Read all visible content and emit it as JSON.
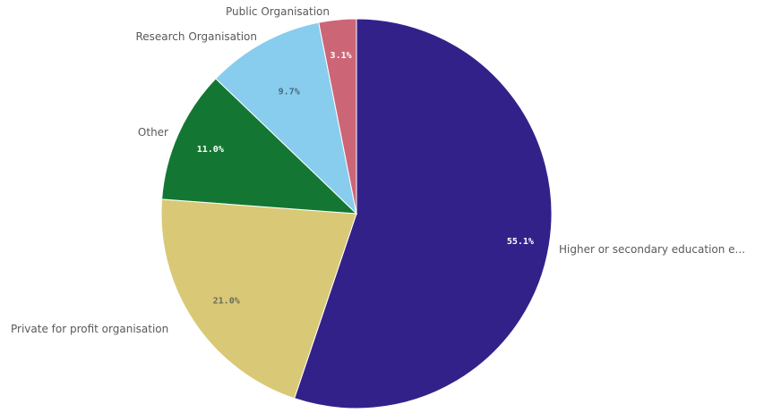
{
  "chart_data": {
    "type": "pie",
    "slices": [
      {
        "label": "Higher or secondary education e...",
        "value": 55.1,
        "value_label": "55.1%",
        "color": "#33218a",
        "value_label_color": "#ffffff"
      },
      {
        "label": "Private for profit organisation",
        "value": 21.0,
        "value_label": "21.0%",
        "color": "#d9c875",
        "value_label_color": "#6b6b5a"
      },
      {
        "label": "Other",
        "value": 11.0,
        "value_label": "11.0%",
        "color": "#137733",
        "value_label_color": "#ffffff"
      },
      {
        "label": "Research Organisation",
        "value": 9.7,
        "value_label": "9.7%",
        "color": "#88ccee",
        "value_label_color": "#4a6a7a"
      },
      {
        "label": "Public Organisation",
        "value": 3.1,
        "value_label": "3.1%",
        "color": "#cc6677",
        "value_label_color": "#ffffff"
      }
    ],
    "start_angle": "12 o'clock",
    "direction": "clockwise",
    "legend": "none (category labels placed outside slices)"
  }
}
